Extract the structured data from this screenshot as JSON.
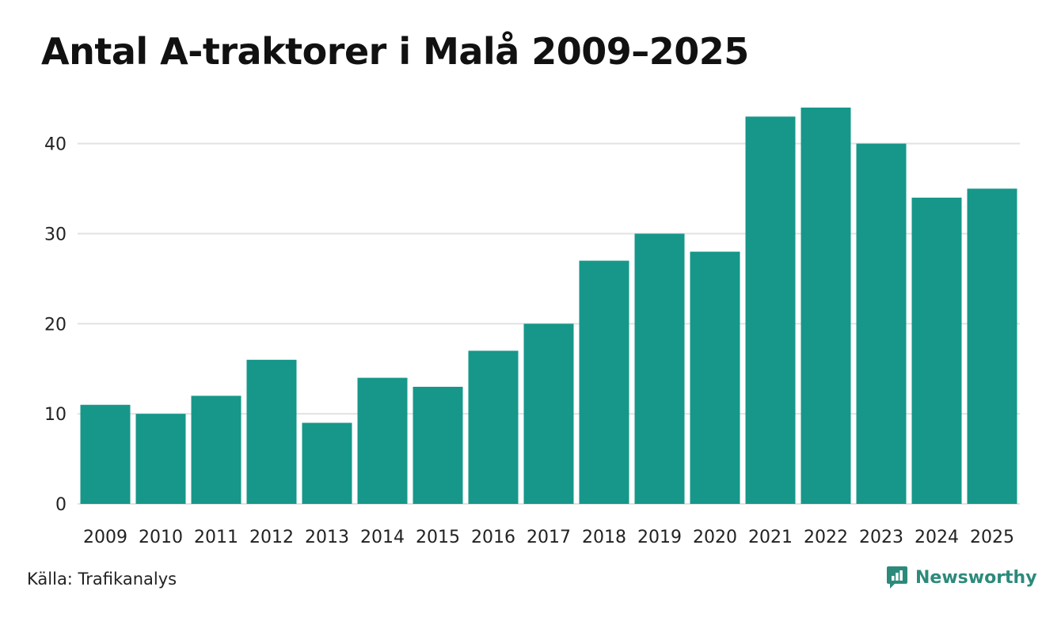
{
  "chart_data": {
    "type": "bar",
    "title": "Antal A-traktorer i Malå 2009–2025",
    "xlabel": "",
    "ylabel": "",
    "categories": [
      "2009",
      "2010",
      "2011",
      "2012",
      "2013",
      "2014",
      "2015",
      "2016",
      "2017",
      "2018",
      "2019",
      "2020",
      "2021",
      "2022",
      "2023",
      "2024",
      "2025"
    ],
    "values": [
      11,
      10,
      12,
      16,
      9,
      14,
      13,
      17,
      20,
      27,
      30,
      28,
      43,
      44,
      40,
      34,
      35
    ],
    "yticks": [
      "0",
      "10",
      "20",
      "30",
      "40"
    ],
    "ylim": [
      0,
      44
    ],
    "grid": true,
    "bar_color": "#16978a"
  },
  "footer": {
    "source": "Källa: Trafikanalys",
    "brand": "Newsworthy"
  },
  "colors": {
    "bar": "#16978a",
    "brand": "#2c8a7b",
    "grid": "#e2e2e2"
  }
}
